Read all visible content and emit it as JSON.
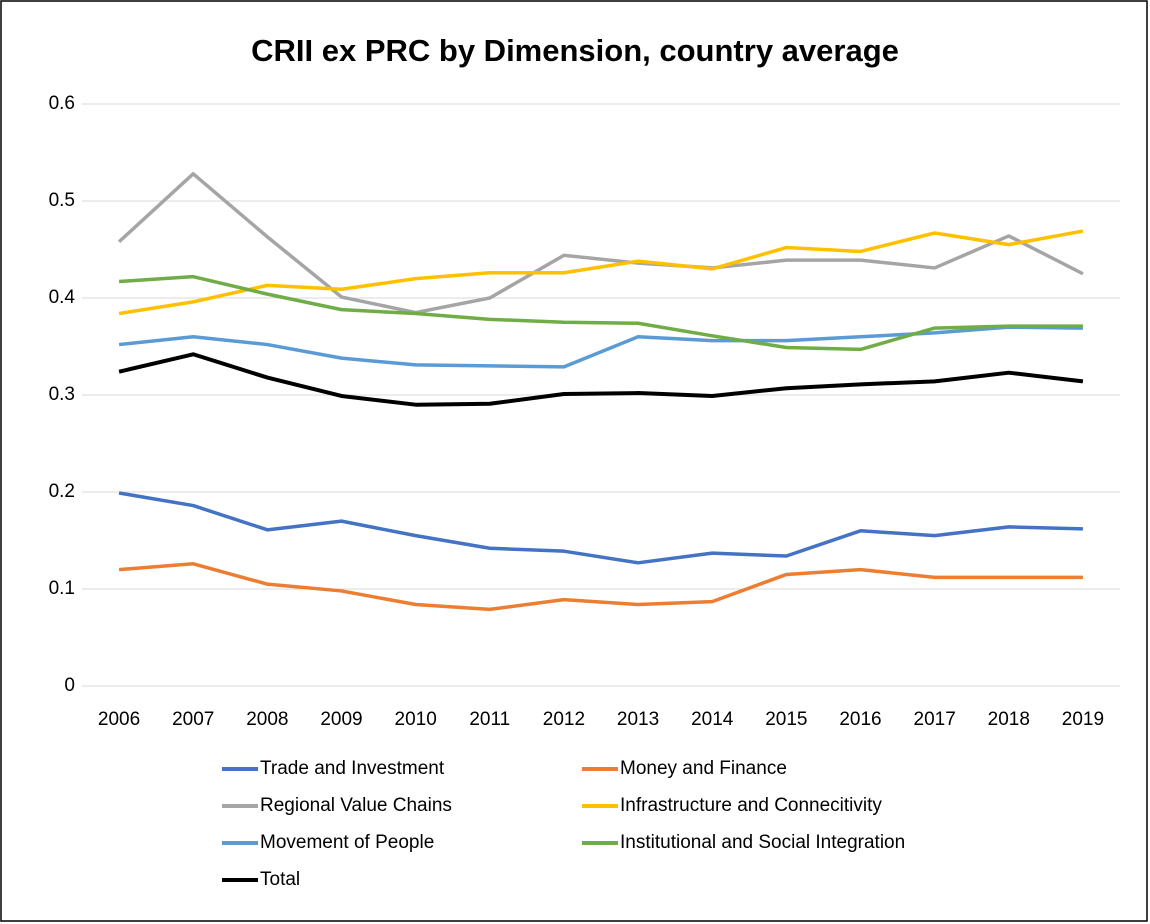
{
  "chart_data": {
    "type": "line",
    "title": "CRII ex PRC by Dimension, country average",
    "categories": [
      "2006",
      "2007",
      "2008",
      "2009",
      "2010",
      "2011",
      "2012",
      "2013",
      "2014",
      "2015",
      "2016",
      "2017",
      "2018",
      "2019"
    ],
    "ylim": [
      0,
      0.6
    ],
    "yticks": [
      0,
      0.1,
      0.2,
      0.3,
      0.4,
      0.5,
      0.6
    ],
    "grid": true,
    "series": [
      {
        "name": "Trade and Investment",
        "color": "#4472c4",
        "values": [
          0.199,
          0.186,
          0.161,
          0.17,
          0.155,
          0.142,
          0.139,
          0.127,
          0.137,
          0.134,
          0.16,
          0.155,
          0.164,
          0.162
        ]
      },
      {
        "name": "Money and Finance",
        "color": "#ed7d31",
        "values": [
          0.12,
          0.126,
          0.105,
          0.098,
          0.084,
          0.079,
          0.089,
          0.084,
          0.087,
          0.115,
          0.12,
          0.112,
          0.112,
          0.112
        ]
      },
      {
        "name": "Regional Value Chains",
        "color": "#a5a5a5",
        "values": [
          0.458,
          0.528,
          0.463,
          0.401,
          0.385,
          0.4,
          0.444,
          0.436,
          0.431,
          0.439,
          0.439,
          0.431,
          0.464,
          0.425
        ]
      },
      {
        "name": "Infrastructure and Connecitivity",
        "color": "#ffc000",
        "values": [
          0.384,
          0.396,
          0.413,
          0.409,
          0.42,
          0.426,
          0.426,
          0.438,
          0.43,
          0.452,
          0.448,
          0.467,
          0.455,
          0.469
        ]
      },
      {
        "name": "Movement of People",
        "color": "#5b9bd5",
        "values": [
          0.352,
          0.36,
          0.352,
          0.338,
          0.331,
          0.33,
          0.329,
          0.36,
          0.356,
          0.356,
          0.36,
          0.364,
          0.37,
          0.369
        ]
      },
      {
        "name": "Institutional and Social Integration",
        "color": "#70ad47",
        "values": [
          0.417,
          0.422,
          0.404,
          0.388,
          0.384,
          0.378,
          0.375,
          0.374,
          0.361,
          0.349,
          0.347,
          0.369,
          0.371,
          0.371
        ]
      },
      {
        "name": "Total",
        "color": "#000000",
        "values": [
          0.324,
          0.342,
          0.318,
          0.299,
          0.29,
          0.291,
          0.301,
          0.302,
          0.299,
          0.307,
          0.311,
          0.314,
          0.323,
          0.314
        ]
      }
    ]
  }
}
